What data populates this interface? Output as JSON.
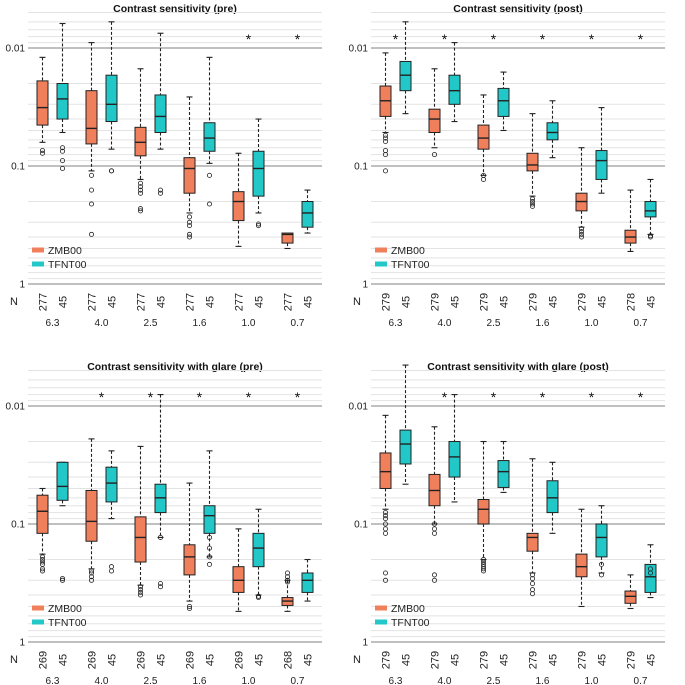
{
  "chart_data": [
    {
      "type": "box",
      "title": "Contrast sensitivity (pre)",
      "yscale": "log-reversed",
      "ylim": [
        1,
        0.005
      ],
      "ytick_labels": [
        "0.01",
        "0.1",
        "1"
      ],
      "categories": [
        "6.3",
        "4.0",
        "2.5",
        "1.6",
        "1.0",
        "0.7"
      ],
      "significant": [
        false,
        false,
        false,
        false,
        true,
        true
      ],
      "n_label": "N",
      "legend": [
        "ZMB00",
        "TFNT00"
      ],
      "series": [
        {
          "name": "ZMB00",
          "color": "#f07f5c",
          "n": [
            "277",
            "277",
            "277",
            "277",
            "277",
            "277"
          ],
          "boxes": [
            {
              "wlo": 0.012,
              "q1": 0.019,
              "med": 0.032,
              "q3": 0.045,
              "whi": 0.063,
              "outliers": [
                0.074,
                0.078
              ]
            },
            {
              "wlo": 0.009,
              "q1": 0.023,
              "med": 0.048,
              "q3": 0.065,
              "whi": 0.11,
              "outliers": [
                0.12,
                0.16,
                0.21,
                0.38
              ]
            },
            {
              "wlo": 0.015,
              "q1": 0.047,
              "med": 0.063,
              "q3": 0.082,
              "whi": 0.13,
              "outliers": [
                0.14,
                0.15,
                0.16,
                0.17,
                0.23,
                0.24
              ]
            },
            {
              "wlo": 0.026,
              "q1": 0.085,
              "med": 0.105,
              "q3": 0.17,
              "whi": 0.25,
              "outliers": [
                0.27,
                0.3,
                0.32,
                0.38,
                0.4
              ]
            },
            {
              "wlo": 0.078,
              "q1": 0.165,
              "med": 0.2,
              "q3": 0.29,
              "whi": 0.48,
              "outliers": []
            },
            {
              "wlo": 0.38,
              "q1": 0.37,
              "med": 0.38,
              "q3": 0.45,
              "whi": 0.5,
              "outliers": []
            }
          ]
        },
        {
          "name": "TFNT00",
          "color": "#22c8c8",
          "n": [
            "45",
            "45",
            "45",
            "45",
            "45",
            "45"
          ],
          "boxes": [
            {
              "wlo": 0.0062,
              "q1": 0.02,
              "med": 0.027,
              "q3": 0.04,
              "whi": 0.052,
              "outliers": [
                0.07,
                0.075,
                0.09,
                0.105
              ]
            },
            {
              "wlo": 0.006,
              "q1": 0.017,
              "med": 0.03,
              "q3": 0.042,
              "whi": 0.072,
              "outliers": [
                0.11,
                0.11
              ]
            },
            {
              "wlo": 0.0075,
              "q1": 0.025,
              "med": 0.038,
              "q3": 0.052,
              "whi": 0.072,
              "outliers": [
                0.16,
                0.17
              ]
            },
            {
              "wlo": 0.012,
              "q1": 0.043,
              "med": 0.058,
              "q3": 0.075,
              "whi": 0.095,
              "outliers": [
                0.12,
                0.21
              ]
            },
            {
              "wlo": 0.04,
              "q1": 0.075,
              "med": 0.105,
              "q3": 0.18,
              "whi": 0.25,
              "outliers": [
                0.31,
                0.32
              ]
            },
            {
              "wlo": 0.16,
              "q1": 0.2,
              "med": 0.25,
              "q3": 0.33,
              "whi": 0.37,
              "outliers": []
            }
          ]
        }
      ]
    },
    {
      "type": "box",
      "title": "Contrast sensitivity (post)",
      "yscale": "log-reversed",
      "ylim": [
        1,
        0.005
      ],
      "ytick_labels": [
        "0.01",
        "0.1",
        "1"
      ],
      "categories": [
        "6.3",
        "4.0",
        "2.5",
        "1.6",
        "1.0",
        "0.7"
      ],
      "significant": [
        true,
        true,
        true,
        true,
        true,
        true
      ],
      "n_label": "N",
      "legend": [
        "ZMB00",
        "TFNT00"
      ],
      "series": [
        {
          "name": "ZMB00",
          "color": "#f07f5c",
          "n": [
            "279",
            "279",
            "279",
            "279",
            "279",
            "278"
          ],
          "boxes": [
            {
              "wlo": 0.011,
              "q1": 0.021,
              "med": 0.028,
              "q3": 0.038,
              "whi": 0.052,
              "outliers": [
                0.055,
                0.058,
                0.062,
                0.074,
                0.08,
                0.11
              ]
            },
            {
              "wlo": 0.015,
              "q1": 0.033,
              "med": 0.04,
              "q3": 0.052,
              "whi": 0.07,
              "outliers": [
                0.08
              ]
            },
            {
              "wlo": 0.025,
              "q1": 0.045,
              "med": 0.058,
              "q3": 0.072,
              "whi": 0.12,
              "outliers": [
                0.12,
                0.13
              ]
            },
            {
              "wlo": 0.036,
              "q1": 0.078,
              "med": 0.098,
              "q3": 0.11,
              "whi": 0.18,
              "outliers": [
                0.19,
                0.2,
                0.21,
                0.22
              ]
            },
            {
              "wlo": 0.07,
              "q1": 0.17,
              "med": 0.2,
              "q3": 0.24,
              "whi": 0.33,
              "outliers": [
                0.34,
                0.36,
                0.38,
                0.4
              ]
            },
            {
              "wlo": 0.16,
              "q1": 0.35,
              "med": 0.4,
              "q3": 0.45,
              "whi": 0.53,
              "outliers": []
            }
          ]
        },
        {
          "name": "TFNT00",
          "color": "#22c8c8",
          "n": [
            "45",
            "45",
            "45",
            "45",
            "45",
            "45"
          ],
          "boxes": [
            {
              "wlo": 0.006,
              "q1": 0.013,
              "med": 0.017,
              "q3": 0.023,
              "whi": 0.036,
              "outliers": []
            },
            {
              "wlo": 0.009,
              "q1": 0.017,
              "med": 0.023,
              "q3": 0.03,
              "whi": 0.042,
              "outliers": []
            },
            {
              "wlo": 0.016,
              "q1": 0.022,
              "med": 0.028,
              "q3": 0.038,
              "whi": 0.05,
              "outliers": []
            },
            {
              "wlo": 0.028,
              "q1": 0.043,
              "med": 0.052,
              "q3": 0.06,
              "whi": 0.085,
              "outliers": []
            },
            {
              "wlo": 0.032,
              "q1": 0.074,
              "med": 0.09,
              "q3": 0.13,
              "whi": 0.17,
              "outliers": []
            },
            {
              "wlo": 0.13,
              "q1": 0.2,
              "med": 0.24,
              "q3": 0.27,
              "whi": 0.38,
              "outliers": [
                0.39,
                0.4
              ]
            }
          ]
        }
      ]
    },
    {
      "type": "box",
      "title": "Contrast sensitivity with glare (pre)",
      "yscale": "log-reversed",
      "ylim": [
        1,
        0.005
      ],
      "ytick_labels": [
        "0.01",
        "0.1",
        "1"
      ],
      "categories": [
        "6.3",
        "4.0",
        "2.5",
        "1.6",
        "1.0",
        "0.7"
      ],
      "significant": [
        false,
        true,
        true,
        true,
        true,
        true
      ],
      "n_label": "N",
      "legend": [
        "ZMB00",
        "TFNT00"
      ],
      "series": [
        {
          "name": "ZMB00",
          "color": "#f07f5c",
          "n": [
            "269",
            "269",
            "269",
            "269",
            "269",
            "268"
          ],
          "boxes": [
            {
              "wlo": 0.05,
              "q1": 0.057,
              "med": 0.078,
              "q3": 0.12,
              "whi": 0.18,
              "outliers": [
                0.19,
                0.2,
                0.21,
                0.22,
                0.24,
                0.25
              ]
            },
            {
              "wlo": 0.019,
              "q1": 0.052,
              "med": 0.095,
              "q3": 0.14,
              "whi": 0.24,
              "outliers": [
                0.25,
                0.26,
                0.28,
                0.3
              ]
            },
            {
              "wlo": 0.022,
              "q1": 0.087,
              "med": 0.13,
              "q3": 0.21,
              "whi": 0.33,
              "outliers": [
                0.34,
                0.36,
                0.38,
                0.4
              ]
            },
            {
              "wlo": 0.045,
              "q1": 0.15,
              "med": 0.19,
              "q3": 0.27,
              "whi": 0.45,
              "outliers": [
                0.5,
                0.52
              ]
            },
            {
              "wlo": 0.11,
              "q1": 0.23,
              "med": 0.3,
              "q3": 0.38,
              "whi": 0.55,
              "outliers": []
            },
            {
              "wlo": 0.3,
              "q1": 0.42,
              "med": 0.45,
              "q3": 0.49,
              "whi": 0.55,
              "outliers": [
                0.26,
                0.28,
                0.3,
                0.31
              ]
            }
          ]
        },
        {
          "name": "TFNT00",
          "color": "#22c8c8",
          "n": [
            "45",
            "45",
            "45",
            "45",
            "45",
            "45"
          ],
          "boxes": [
            {
              "wlo": 0.03,
              "q1": 0.03,
              "med": 0.048,
              "q3": 0.063,
              "whi": 0.07,
              "outliers": [
                0.29,
                0.3
              ]
            },
            {
              "wlo": 0.024,
              "q1": 0.033,
              "med": 0.045,
              "q3": 0.065,
              "whi": 0.09,
              "outliers": [
                0.23,
                0.25
              ]
            },
            {
              "wlo": 0.008,
              "q1": 0.046,
              "med": 0.06,
              "q3": 0.08,
              "whi": 0.13,
              "outliers": [
                0.13,
                0.32,
                0.34
              ]
            },
            {
              "wlo": 0.024,
              "q1": 0.07,
              "med": 0.085,
              "q3": 0.12,
              "whi": 0.19,
              "outliers": [
                0.13,
                0.16,
                0.19,
                0.22
              ]
            },
            {
              "wlo": 0.075,
              "q1": 0.12,
              "med": 0.16,
              "q3": 0.23,
              "whi": 0.4,
              "outliers": [
                0.41,
                0.42
              ]
            },
            {
              "wlo": 0.2,
              "q1": 0.26,
              "med": 0.3,
              "q3": 0.38,
              "whi": 0.45,
              "outliers": []
            }
          ]
        }
      ]
    },
    {
      "type": "box",
      "title": "Contrast sensitivity with glare (post)",
      "yscale": "log-reversed",
      "ylim": [
        1,
        0.005
      ],
      "ytick_labels": [
        "0.01",
        "0.1",
        "1"
      ],
      "categories": [
        "6.3",
        "4.0",
        "2.5",
        "1.6",
        "1.0",
        "0.7"
      ],
      "significant": [
        false,
        true,
        true,
        true,
        true,
        true
      ],
      "n_label": "N",
      "legend": [
        "ZMB00",
        "TFNT00"
      ],
      "series": [
        {
          "name": "ZMB00",
          "color": "#f07f5c",
          "n": [
            "279",
            "279",
            "279",
            "279",
            "279",
            "279"
          ],
          "boxes": [
            {
              "wlo": 0.012,
              "q1": 0.025,
              "med": 0.036,
              "q3": 0.05,
              "whi": 0.075,
              "outliers": [
                0.08,
                0.085,
                0.09,
                0.1,
                0.11,
                0.12,
                0.26,
                0.3
              ]
            },
            {
              "wlo": 0.015,
              "q1": 0.038,
              "med": 0.052,
              "q3": 0.07,
              "whi": 0.1,
              "outliers": [
                0.1,
                0.11,
                0.12,
                0.27,
                0.3
              ]
            },
            {
              "wlo": 0.02,
              "q1": 0.062,
              "med": 0.075,
              "q3": 0.1,
              "whi": 0.2,
              "outliers": [
                0.2,
                0.21,
                0.22,
                0.23,
                0.24,
                0.25
              ]
            },
            {
              "wlo": 0.028,
              "q1": 0.12,
              "med": 0.13,
              "q3": 0.17,
              "whi": 0.26,
              "outliers": [
                0.27,
                0.29,
                0.32,
                0.36,
                0.39
              ]
            },
            {
              "wlo": 0.075,
              "q1": 0.18,
              "med": 0.23,
              "q3": 0.28,
              "whi": 0.5,
              "outliers": []
            },
            {
              "wlo": 0.27,
              "q1": 0.37,
              "med": 0.41,
              "q3": 0.47,
              "whi": 0.52,
              "outliers": []
            }
          ]
        },
        {
          "name": "TFNT00",
          "color": "#22c8c8",
          "n": [
            "45",
            "45",
            "45",
            "45",
            "45",
            "45"
          ],
          "boxes": [
            {
              "wlo": 0.0045,
              "q1": 0.016,
              "med": 0.021,
              "q3": 0.031,
              "whi": 0.046,
              "outliers": []
            },
            {
              "wlo": 0.008,
              "q1": 0.02,
              "med": 0.027,
              "q3": 0.04,
              "whi": 0.065,
              "outliers": []
            },
            {
              "wlo": 0.02,
              "q1": 0.029,
              "med": 0.036,
              "q3": 0.049,
              "whi": 0.054,
              "outliers": []
            },
            {
              "wlo": 0.03,
              "q1": 0.043,
              "med": 0.06,
              "q3": 0.08,
              "whi": 0.12,
              "outliers": []
            },
            {
              "wlo": 0.07,
              "q1": 0.1,
              "med": 0.13,
              "q3": 0.19,
              "whi": 0.26,
              "outliers": [
                0.22,
                0.27
              ]
            },
            {
              "wlo": 0.15,
              "q1": 0.22,
              "med": 0.28,
              "q3": 0.38,
              "whi": 0.42,
              "outliers": [
                0.24,
                0.26
              ]
            }
          ]
        }
      ]
    }
  ]
}
